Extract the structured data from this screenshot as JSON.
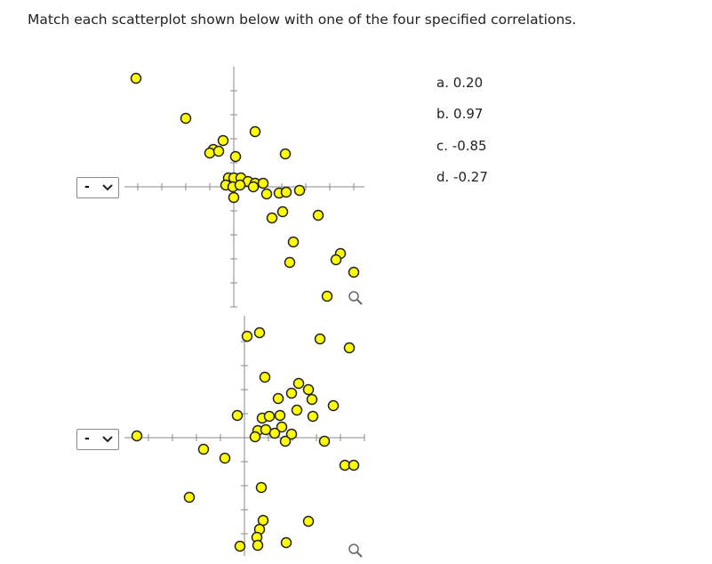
{
  "question": "Match each scatterplot shown below with one of the four specified correlations.",
  "dropdowns": [
    {
      "placeholder": "-"
    },
    {
      "placeholder": "-"
    }
  ],
  "options": [
    "a. 0.20",
    "b. 0.97",
    "c. -0.85",
    "d. -0.27"
  ]
}
